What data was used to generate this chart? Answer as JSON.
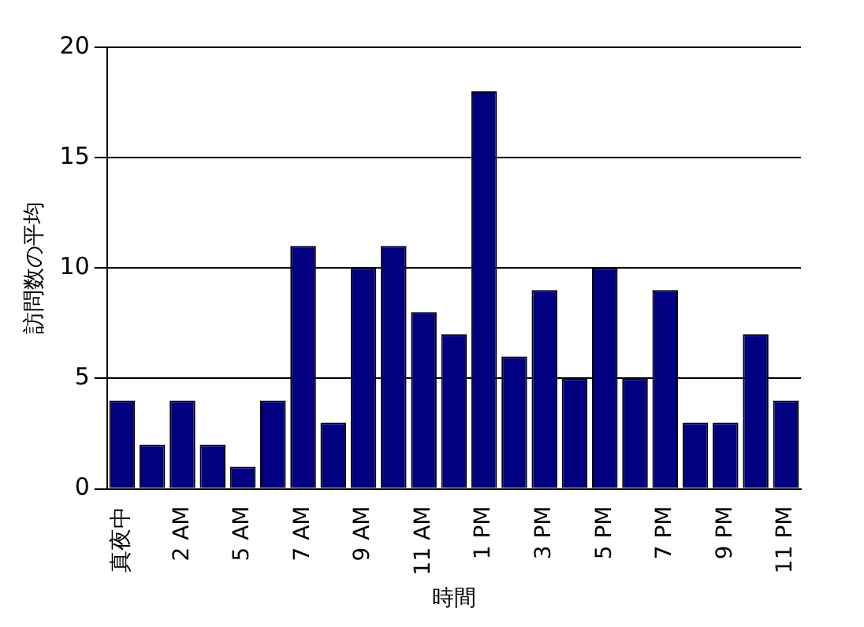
{
  "chart_data": {
    "type": "bar",
    "xlabel": "時間",
    "ylabel": "訪問数の平均",
    "categories": [
      "真夜中",
      null,
      "2 AM",
      null,
      "5 AM",
      null,
      "7 AM",
      null,
      "9 AM",
      null,
      "11 AM",
      null,
      "1 PM",
      null,
      "3 PM",
      null,
      "5 PM",
      null,
      "7 PM",
      null,
      "9 PM",
      null,
      "11 PM"
    ],
    "values": [
      4,
      2,
      4,
      2,
      1,
      4,
      11,
      3,
      10,
      11,
      8,
      7,
      18,
      6,
      9,
      5,
      10,
      5,
      9,
      3,
      3,
      7,
      4
    ],
    "color": "#000080",
    "ylim": [
      0,
      20
    ],
    "yticks": [
      0,
      5,
      10,
      15,
      20
    ],
    "grid": "y",
    "legend": false
  }
}
